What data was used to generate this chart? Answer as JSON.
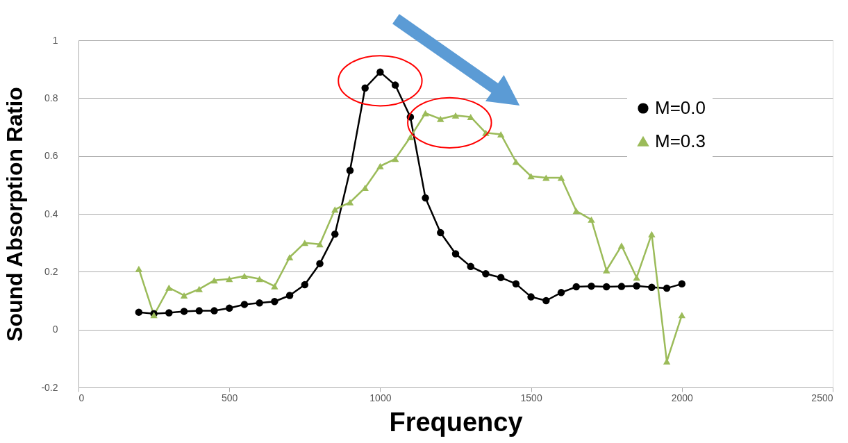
{
  "chart_data": {
    "type": "line",
    "xlabel": "Frequency",
    "ylabel": "Sound Absorption Ratio",
    "x": [
      200,
      250,
      300,
      350,
      400,
      450,
      500,
      550,
      600,
      650,
      700,
      750,
      800,
      850,
      900,
      950,
      1000,
      1050,
      1100,
      1150,
      1200,
      1250,
      1300,
      1350,
      1400,
      1450,
      1500,
      1550,
      1600,
      1650,
      1700,
      1750,
      1800,
      1850,
      1900,
      1950,
      2000
    ],
    "series": [
      {
        "name": "M=0.0",
        "color": "#000000",
        "marker": "circle",
        "values": [
          0.06,
          0.055,
          0.058,
          0.063,
          0.065,
          0.065,
          0.074,
          0.087,
          0.092,
          0.097,
          0.118,
          0.155,
          0.228,
          0.33,
          0.55,
          0.835,
          0.89,
          0.845,
          0.735,
          0.455,
          0.335,
          0.262,
          0.218,
          0.193,
          0.18,
          0.158,
          0.113,
          0.1,
          0.128,
          0.148,
          0.15,
          0.148,
          0.149,
          0.151,
          0.146,
          0.143,
          0.158
        ]
      },
      {
        "name": "M=0.3",
        "color": "#9bbb59",
        "marker": "triangle",
        "values": [
          0.21,
          0.05,
          0.145,
          0.118,
          0.14,
          0.17,
          0.175,
          0.185,
          0.175,
          0.15,
          0.25,
          0.3,
          0.295,
          0.415,
          0.44,
          0.49,
          0.565,
          0.59,
          0.665,
          0.748,
          0.728,
          0.74,
          0.735,
          0.68,
          0.675,
          0.58,
          0.53,
          0.525,
          0.525,
          0.41,
          0.38,
          0.205,
          0.29,
          0.18,
          0.33,
          -0.11,
          0.05
        ]
      }
    ],
    "xlim": [
      0,
      2500
    ],
    "xticks": [
      0,
      500,
      1000,
      1500,
      2000,
      2500
    ],
    "ylim": [
      -0.2,
      1
    ],
    "yticks": [
      -0.2,
      0,
      0.2,
      0.4,
      0.6,
      0.8,
      1
    ],
    "grid": "y",
    "legend": "right",
    "line_style": "solid"
  }
}
